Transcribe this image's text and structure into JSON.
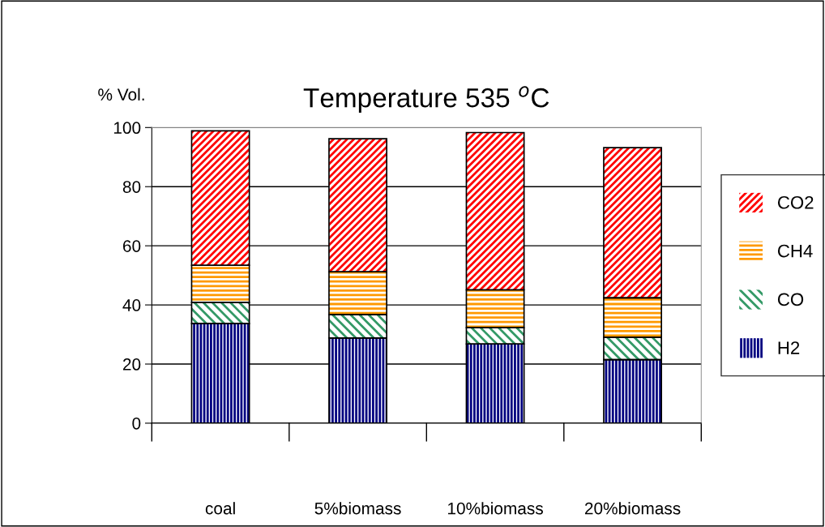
{
  "chart_data": {
    "type": "bar",
    "stacked": true,
    "title": "Temperature 535 $^{o}$C",
    "ylabel": "% Vol.",
    "categories": [
      "coal",
      "5%biomass",
      "10%biomass",
      "20%biomass"
    ],
    "series": [
      {
        "name": "H2",
        "color": "#000080",
        "values": [
          33.7,
          28.8,
          26.8,
          21.5
        ]
      },
      {
        "name": "CO",
        "color": "#339966",
        "values": [
          7.1,
          7.9,
          5.5,
          7.5
        ]
      },
      {
        "name": "CH4",
        "color": "#ff9900",
        "values": [
          12.6,
          14.5,
          12.8,
          13.4
        ]
      },
      {
        "name": "CO2",
        "color": "#ff0000",
        "values": [
          45.5,
          45.0,
          53.2,
          50.8
        ]
      }
    ],
    "ylim": [
      0,
      100
    ],
    "yticks": [
      0,
      20,
      40,
      60,
      80,
      100
    ],
    "grid": "y",
    "legend": "right"
  }
}
